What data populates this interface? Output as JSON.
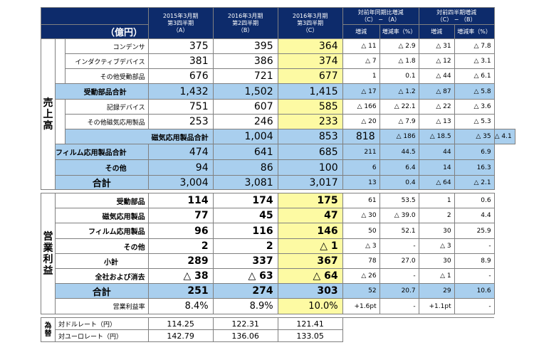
{
  "unit_label": "（億円）",
  "columns": [
    {
      "h": "2015年3月期",
      "s": "第3四半期",
      "k": "（A）"
    },
    {
      "h": "2016年3月期",
      "s": "第2四半期",
      "k": "（B）"
    },
    {
      "h": "2016年3月期",
      "s": "第3四半期",
      "k": "（C）"
    }
  ],
  "yoy_header": "対前年同期比増減",
  "yoy_formula": "（C） − （A）",
  "qoq_header": "対前四半期増減",
  "qoq_formula": "（C） − （B）",
  "chg_label": "増減",
  "chg_rate_label": "増減率（%）",
  "sales_section": "売上高",
  "op_section": "営業利益",
  "fx_section": "為替",
  "sales_rows": [
    {
      "label": "コンデンサ",
      "v": [
        "375",
        "395",
        "364"
      ],
      "d": [
        "△ 11",
        "△ 2.9",
        "△ 31",
        "△ 7.8"
      ]
    },
    {
      "label": "インダクティブデバイス",
      "v": [
        "381",
        "386",
        "374"
      ],
      "d": [
        "△ 7",
        "△ 1.8",
        "△ 12",
        "△ 3.1"
      ]
    },
    {
      "label": "その他受動部品",
      "v": [
        "676",
        "721",
        "677"
      ],
      "d": [
        "1",
        "0.1",
        "△ 44",
        "△ 6.1"
      ]
    },
    {
      "label": "受動部品合計",
      "v": [
        "1,432",
        "1,502",
        "1,415"
      ],
      "d": [
        "△ 17",
        "△ 1.2",
        "△ 87",
        "△ 5.8"
      ]
    },
    {
      "label": "記録デバイス",
      "v": [
        "751",
        "607",
        "585"
      ],
      "d": [
        "△ 166",
        "△ 22.1",
        "△ 22",
        "△ 3.6"
      ]
    },
    {
      "label": "その他磁気応用製品",
      "v": [
        "253",
        "246",
        "233"
      ],
      "d": [
        "△ 20",
        "△ 7.9",
        "△ 13",
        "△ 5.3"
      ]
    },
    {
      "label": "磁気応用製品合計",
      "v": [
        "1,004",
        "853",
        "818"
      ],
      "d": [
        "△ 186",
        "△ 18.5",
        "△ 35",
        "△ 4.1"
      ]
    },
    {
      "label": "フィルム応用製品合計",
      "v": [
        "474",
        "641",
        "685"
      ],
      "d": [
        "211",
        "44.5",
        "44",
        "6.9"
      ]
    },
    {
      "label": "その他",
      "v": [
        "94",
        "86",
        "100"
      ],
      "d": [
        "6",
        "6.4",
        "14",
        "16.3"
      ]
    },
    {
      "label": "合計",
      "v": [
        "3,004",
        "3,081",
        "3,017"
      ],
      "d": [
        "13",
        "0.4",
        "△ 64",
        "△ 2.1"
      ]
    }
  ],
  "op_rows": [
    {
      "label": "受動部品",
      "v": [
        "114",
        "174",
        "175"
      ],
      "d": [
        "61",
        "53.5",
        "1",
        "0.6"
      ]
    },
    {
      "label": "磁気応用製品",
      "v": [
        "77",
        "45",
        "47"
      ],
      "d": [
        "△ 30",
        "△ 39.0",
        "2",
        "4.4"
      ]
    },
    {
      "label": "フィルム応用製品",
      "v": [
        "96",
        "116",
        "146"
      ],
      "d": [
        "50",
        "52.1",
        "30",
        "25.9"
      ]
    },
    {
      "label": "その他",
      "v": [
        "2",
        "2",
        "△ 1"
      ],
      "d": [
        "△ 3",
        "-",
        "△ 3",
        "-"
      ]
    },
    {
      "label": "小計",
      "v": [
        "289",
        "337",
        "367"
      ],
      "d": [
        "78",
        "27.0",
        "30",
        "8.9"
      ]
    },
    {
      "label": "全社および消去",
      "v": [
        "△ 38",
        "△ 63",
        "△ 64"
      ],
      "d": [
        "△ 26",
        "-",
        "△ 1",
        "-"
      ]
    },
    {
      "label": "合計",
      "v": [
        "251",
        "274",
        "303"
      ],
      "d": [
        "52",
        "20.7",
        "29",
        "10.6"
      ]
    },
    {
      "label": "営業利益率",
      "v": [
        "8.4%",
        "8.9%",
        "10.0%"
      ],
      "d": [
        "+1.6pt",
        "-",
        "+1.1pt",
        "-"
      ]
    }
  ],
  "fx_rows": [
    {
      "label": "対ドルレート（円）",
      "v": [
        "114.25",
        "122.31",
        "121.41"
      ]
    },
    {
      "label": "対ユーロレート（円）",
      "v": [
        "142.79",
        "136.06",
        "133.05"
      ]
    }
  ],
  "colors": {
    "header": "#0d2b6b",
    "total_row": "#a9cfee",
    "highlight": "#fdfaa3"
  }
}
